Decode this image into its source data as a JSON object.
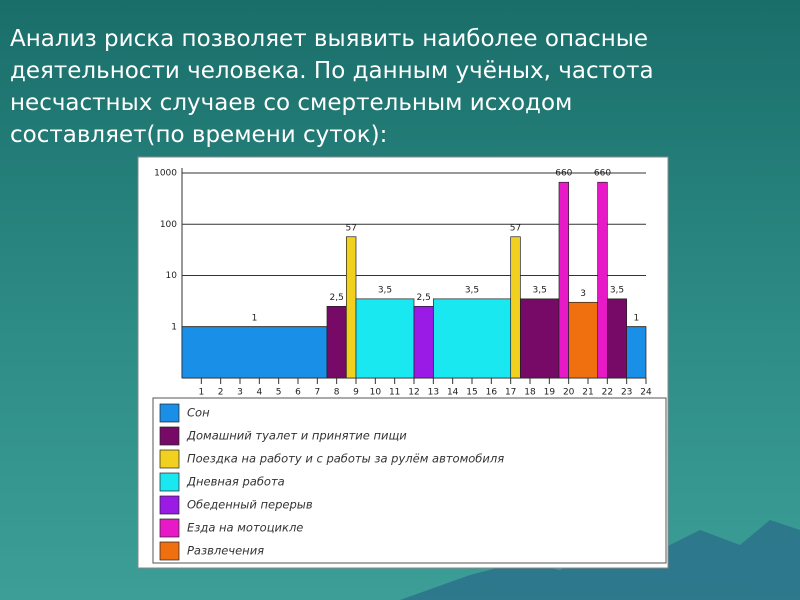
{
  "slide": {
    "text_lines": [
      "Анализ риска позволяет выявить наиболее опасные",
      "деятельности человека. По данным учёных, частота",
      "несчастных случаев со смертельным исходом",
      "составляет(по времени суток):"
    ]
  },
  "chart_data": {
    "type": "bar",
    "log_scale": true,
    "grid": true,
    "xlim": [
      0,
      24
    ],
    "xticks": [
      1,
      2,
      3,
      4,
      5,
      6,
      7,
      8,
      9,
      10,
      11,
      12,
      13,
      14,
      15,
      16,
      17,
      18,
      19,
      20,
      21,
      22,
      23,
      24
    ],
    "ylim": [
      0.1,
      1000
    ],
    "yticks": [
      1,
      10,
      100,
      1000
    ],
    "series": [
      {
        "name": "Сон",
        "color": "#1a8fe8",
        "x": [
          [
            0,
            7.5
          ],
          [
            23,
            24
          ]
        ],
        "values": [
          1,
          1
        ],
        "value_labels": [
          "1",
          "1"
        ]
      },
      {
        "name": "Домашний туалет и принятие пищи",
        "color": "#760a66",
        "x": [
          [
            7.5,
            8.5
          ],
          [
            17.5,
            19.5
          ],
          [
            22,
            23
          ]
        ],
        "values": [
          2.5,
          3.5,
          3.5
        ],
        "value_labels": [
          "2,5",
          "3,5",
          "3,5"
        ]
      },
      {
        "name": "Поездка на работу и с работы за рулём автомобиля",
        "color": "#f2d020",
        "x": [
          [
            8.5,
            9
          ],
          [
            17,
            17.5
          ]
        ],
        "values": [
          57,
          57
        ],
        "value_labels": [
          "57",
          "57"
        ]
      },
      {
        "name": "Дневная работа",
        "color": "#1ae8f0",
        "x": [
          [
            9,
            12
          ],
          [
            13,
            17
          ]
        ],
        "values": [
          3.5,
          3.5
        ],
        "value_labels": [
          "3,5",
          "3,5"
        ]
      },
      {
        "name": "Обеденный перерыв",
        "color": "#9a1ae6",
        "x": [
          [
            12,
            13
          ]
        ],
        "values": [
          2.5
        ],
        "value_labels": [
          "2,5"
        ]
      },
      {
        "name": "Езда на мотоцикле",
        "color": "#e81ac8",
        "x": [
          [
            19.5,
            20
          ],
          [
            21.5,
            22
          ]
        ],
        "values": [
          660,
          660
        ],
        "value_labels": [
          "660",
          "660"
        ]
      },
      {
        "name": "Развлечения",
        "color": "#f07010",
        "x": [
          [
            20,
            21.5
          ]
        ],
        "values": [
          3
        ],
        "value_labels": [
          "3"
        ]
      }
    ]
  }
}
